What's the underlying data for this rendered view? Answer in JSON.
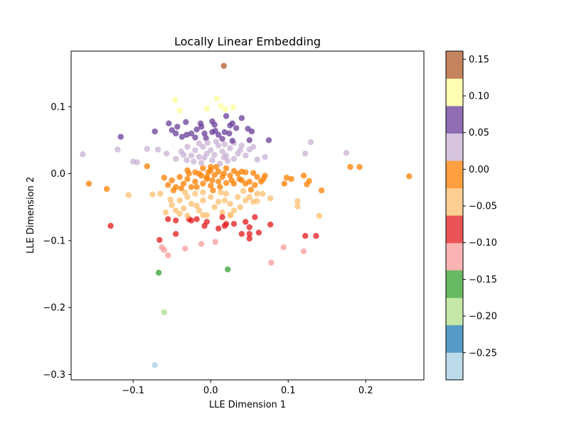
{
  "chart_data": {
    "type": "scatter",
    "title": "Locally Linear Embedding",
    "xlabel": "LLE Dimension 1",
    "ylabel": "LLE Dimension 2",
    "xlim": [
      -0.18,
      0.275
    ],
    "ylim": [
      -0.308,
      0.183
    ],
    "xticks": [
      {
        "value": -0.1,
        "label": "−0.1"
      },
      {
        "value": 0.0,
        "label": "0.0"
      },
      {
        "value": 0.1,
        "label": "0.1"
      },
      {
        "value": 0.2,
        "label": "0.2"
      }
    ],
    "yticks": [
      {
        "value": -0.3,
        "label": "−0.3"
      },
      {
        "value": -0.2,
        "label": "−0.2"
      },
      {
        "value": -0.1,
        "label": "−0.1"
      },
      {
        "value": 0.0,
        "label": "0.0"
      },
      {
        "value": 0.1,
        "label": "0.1"
      }
    ],
    "grid": false,
    "colorbar": {
      "cmap": "Paired",
      "range": [
        -0.287,
        0.161
      ],
      "colors": [
        "#a6cee3",
        "#1f78b4",
        "#b2df8a",
        "#33a02c",
        "#fb9a99",
        "#e31a1c",
        "#fdbf6f",
        "#ff7f00",
        "#cab2d6",
        "#6a3d9a",
        "#ffff99",
        "#b15928"
      ],
      "ticks": [
        {
          "value": -0.25,
          "label": "−0.25"
        },
        {
          "value": -0.2,
          "label": "−0.20"
        },
        {
          "value": -0.15,
          "label": "−0.15"
        },
        {
          "value": -0.1,
          "label": "−0.10"
        },
        {
          "value": -0.05,
          "label": "−0.05"
        },
        {
          "value": 0.0,
          "label": "0.00"
        },
        {
          "value": 0.05,
          "label": "0.05"
        },
        {
          "value": 0.1,
          "label": "0.10"
        },
        {
          "value": 0.15,
          "label": "0.15"
        }
      ]
    },
    "points": [
      [
        0.017,
        0.161
      ],
      [
        0.008,
        0.112
      ],
      [
        -0.046,
        0.11
      ],
      [
        0.029,
        0.099
      ],
      [
        0.019,
        0.096
      ],
      [
        -0.04,
        0.094
      ],
      [
        -0.072,
        -0.286
      ],
      [
        -0.06,
        -0.207
      ],
      [
        -0.067,
        -0.148
      ],
      [
        0.022,
        -0.143
      ],
      [
        0.013,
        0.101
      ],
      [
        -0.005,
        0.097
      ],
      [
        -0.054,
        0.075
      ],
      [
        -0.032,
        0.077
      ],
      [
        -0.045,
        0.06
      ],
      [
        -0.012,
        0.07
      ],
      [
        0.005,
        0.073
      ],
      [
        0.02,
        0.086
      ],
      [
        0.04,
        0.083
      ],
      [
        -0.072,
        0.063
      ],
      [
        -0.116,
        0.055
      ],
      [
        -0.05,
        0.065
      ],
      [
        -0.043,
        0.07
      ],
      [
        -0.031,
        0.058
      ],
      [
        -0.025,
        0.06
      ],
      [
        -0.018,
        0.066
      ],
      [
        -0.008,
        0.06
      ],
      [
        0.002,
        0.062
      ],
      [
        0.01,
        0.058
      ],
      [
        0.018,
        0.062
      ],
      [
        0.028,
        0.075
      ],
      [
        0.033,
        0.068
      ],
      [
        0.048,
        0.067
      ],
      [
        0.053,
        0.063
      ],
      [
        0.075,
        0.05
      ],
      [
        -0.02,
        0.054
      ],
      [
        -0.006,
        0.053
      ],
      [
        0.006,
        0.064
      ],
      [
        0.015,
        0.052
      ],
      [
        0.024,
        0.06
      ],
      [
        0.002,
        0.078
      ],
      [
        -0.013,
        0.075
      ],
      [
        0.025,
        0.072
      ],
      [
        -0.037,
        0.055
      ],
      [
        -0.165,
        0.029
      ],
      [
        -0.12,
        0.036
      ],
      [
        -0.1,
        0.018
      ],
      [
        -0.095,
        0.017
      ],
      [
        -0.082,
        0.037
      ],
      [
        -0.068,
        0.036
      ],
      [
        -0.057,
        0.03
      ],
      [
        -0.045,
        0.022
      ],
      [
        -0.038,
        0.033
      ],
      [
        -0.03,
        0.04
      ],
      [
        -0.025,
        0.027
      ],
      [
        -0.02,
        0.035
      ],
      [
        -0.015,
        0.025
      ],
      [
        -0.01,
        0.04
      ],
      [
        -0.005,
        0.03
      ],
      [
        0.0,
        0.035
      ],
      [
        0.005,
        0.028
      ],
      [
        0.01,
        0.042
      ],
      [
        0.015,
        0.033
      ],
      [
        0.02,
        0.027
      ],
      [
        0.025,
        0.038
      ],
      [
        0.03,
        0.046
      ],
      [
        0.035,
        0.03
      ],
      [
        0.04,
        0.042
      ],
      [
        0.045,
        0.027
      ],
      [
        0.05,
        0.036
      ],
      [
        0.055,
        0.04
      ],
      [
        0.06,
        0.021
      ],
      [
        0.07,
        0.025
      ],
      [
        0.129,
        0.047
      ],
      [
        0.122,
        0.03
      ],
      [
        0.175,
        0.031
      ],
      [
        -0.012,
        0.016
      ],
      [
        0.002,
        0.02
      ],
      [
        0.012,
        0.015
      ],
      [
        -0.022,
        0.018
      ],
      [
        0.022,
        0.019
      ],
      [
        0.03,
        0.022
      ],
      [
        -0.031,
        0.02
      ],
      [
        0.007,
        0.048
      ],
      [
        -0.004,
        0.046
      ],
      [
        0.05,
        0.05
      ],
      [
        -0.015,
        0.045
      ],
      [
        0.018,
        0.044
      ],
      [
        0.028,
        0.049
      ],
      [
        0.038,
        0.035
      ],
      [
        -0.035,
        0.028
      ],
      [
        0.0,
        0.01
      ],
      [
        -0.008,
        0.024
      ],
      [
        0.017,
        0.024
      ],
      [
        -0.157,
        -0.015
      ],
      [
        -0.134,
        -0.023
      ],
      [
        -0.082,
        0.011
      ],
      [
        -0.06,
        -0.006
      ],
      [
        -0.055,
        -0.017
      ],
      [
        -0.05,
        -0.01
      ],
      [
        -0.045,
        -0.02
      ],
      [
        -0.04,
        -0.005
      ],
      [
        -0.035,
        -0.015
      ],
      [
        -0.03,
        -0.008
      ],
      [
        -0.025,
        -0.02
      ],
      [
        -0.02,
        -0.012
      ],
      [
        -0.015,
        0.0
      ],
      [
        -0.01,
        -0.015
      ],
      [
        -0.005,
        -0.005
      ],
      [
        0.0,
        -0.018
      ],
      [
        0.005,
        -0.002
      ],
      [
        0.01,
        -0.012
      ],
      [
        0.015,
        -0.005
      ],
      [
        0.02,
        -0.014
      ],
      [
        0.025,
        -0.003
      ],
      [
        0.03,
        -0.015
      ],
      [
        0.035,
        0.0
      ],
      [
        0.04,
        -0.01
      ],
      [
        0.045,
        0.002
      ],
      [
        0.05,
        -0.012
      ],
      [
        0.055,
        0.001
      ],
      [
        0.06,
        -0.005
      ],
      [
        0.065,
        -0.012
      ],
      [
        0.07,
        -0.003
      ],
      [
        0.095,
        -0.015
      ],
      [
        0.098,
        -0.006
      ],
      [
        0.104,
        -0.008
      ],
      [
        0.12,
        -0.003
      ],
      [
        0.124,
        -0.016
      ],
      [
        0.127,
        -0.011
      ],
      [
        0.143,
        -0.025
      ],
      [
        0.18,
        0.01
      ],
      [
        0.192,
        0.01
      ],
      [
        0.256,
        -0.004
      ],
      [
        -0.03,
        0.005
      ],
      [
        -0.02,
        0.002
      ],
      [
        -0.01,
        0.008
      ],
      [
        0.0,
        0.005
      ],
      [
        0.01,
        0.003
      ],
      [
        0.02,
        0.008
      ],
      [
        0.03,
        0.004
      ],
      [
        0.04,
        0.003
      ],
      [
        -0.005,
        -0.008
      ],
      [
        0.012,
        -0.02
      ],
      [
        -0.018,
        -0.02
      ],
      [
        0.045,
        -0.015
      ],
      [
        0.052,
        -0.024
      ],
      [
        0.068,
        -0.008
      ],
      [
        -0.038,
        -0.022
      ],
      [
        0.007,
        0.01
      ],
      [
        -0.012,
        -0.003
      ],
      [
        0.002,
        -0.01
      ],
      [
        0.017,
        0.0
      ],
      [
        0.027,
        -0.01
      ],
      [
        -0.003,
        0.002
      ],
      [
        -0.028,
        0.0
      ],
      [
        0.037,
        -0.008
      ],
      [
        0.057,
        -0.017
      ],
      [
        -0.048,
        -0.025
      ],
      [
        -0.106,
        -0.032
      ],
      [
        -0.075,
        -0.031
      ],
      [
        -0.065,
        -0.03
      ],
      [
        -0.058,
        -0.058
      ],
      [
        -0.05,
        -0.047
      ],
      [
        -0.045,
        -0.055
      ],
      [
        -0.04,
        -0.04
      ],
      [
        -0.035,
        -0.052
      ],
      [
        -0.03,
        -0.035
      ],
      [
        -0.025,
        -0.045
      ],
      [
        -0.02,
        -0.03
      ],
      [
        -0.015,
        -0.055
      ],
      [
        -0.01,
        -0.04
      ],
      [
        -0.005,
        -0.062
      ],
      [
        0.0,
        -0.035
      ],
      [
        0.005,
        -0.05
      ],
      [
        0.01,
        -0.042
      ],
      [
        0.015,
        -0.058
      ],
      [
        0.02,
        -0.03
      ],
      [
        0.025,
        -0.045
      ],
      [
        0.03,
        -0.055
      ],
      [
        0.035,
        -0.035
      ],
      [
        0.045,
        -0.04
      ],
      [
        0.055,
        -0.042
      ],
      [
        0.06,
        -0.03
      ],
      [
        0.067,
        -0.03
      ],
      [
        0.077,
        -0.037
      ],
      [
        0.112,
        -0.041
      ],
      [
        0.112,
        -0.049
      ],
      [
        -0.04,
        -0.06
      ],
      [
        -0.028,
        -0.068
      ],
      [
        0.018,
        -0.04
      ],
      [
        0.003,
        -0.025
      ],
      [
        -0.018,
        -0.048
      ],
      [
        0.038,
        -0.05
      ],
      [
        0.05,
        -0.035
      ],
      [
        -0.01,
        -0.028
      ],
      [
        0.026,
        -0.062
      ],
      [
        -0.052,
        -0.039
      ],
      [
        0.06,
        -0.041
      ],
      [
        0.013,
        -0.028
      ],
      [
        -0.033,
        -0.028
      ],
      [
        0.042,
        -0.026
      ],
      [
        -0.06,
        -0.114
      ],
      [
        -0.063,
        -0.11
      ],
      [
        -0.055,
        -0.122
      ],
      [
        -0.033,
        -0.112
      ],
      [
        -0.012,
        -0.105
      ],
      [
        0.006,
        -0.102
      ],
      [
        0.094,
        -0.11
      ],
      [
        0.078,
        -0.133
      ],
      [
        0.12,
        -0.116
      ],
      [
        -0.129,
        -0.078
      ],
      [
        -0.066,
        -0.099
      ],
      [
        -0.055,
        -0.068
      ],
      [
        -0.045,
        -0.07
      ],
      [
        -0.045,
        -0.09
      ],
      [
        -0.03,
        -0.063
      ],
      [
        -0.025,
        -0.07
      ],
      [
        -0.01,
        -0.062
      ],
      [
        -0.005,
        -0.072
      ],
      [
        0.01,
        -0.082
      ],
      [
        0.015,
        -0.065
      ],
      [
        0.02,
        -0.075
      ],
      [
        0.025,
        -0.062
      ],
      [
        0.03,
        -0.075
      ],
      [
        0.04,
        -0.09
      ],
      [
        0.045,
        -0.072
      ],
      [
        0.05,
        -0.08
      ],
      [
        0.05,
        -0.09
      ],
      [
        0.05,
        -0.097
      ],
      [
        0.057,
        -0.065
      ],
      [
        0.077,
        -0.076
      ],
      [
        0.122,
        -0.093
      ],
      [
        0.136,
        -0.093
      ],
      [
        0.14,
        -0.063
      ],
      [
        -0.008,
        -0.078
      ],
      [
        0.018,
        -0.078
      ],
      [
        0.062,
        -0.088
      ],
      [
        -0.018,
        -0.068
      ]
    ]
  }
}
